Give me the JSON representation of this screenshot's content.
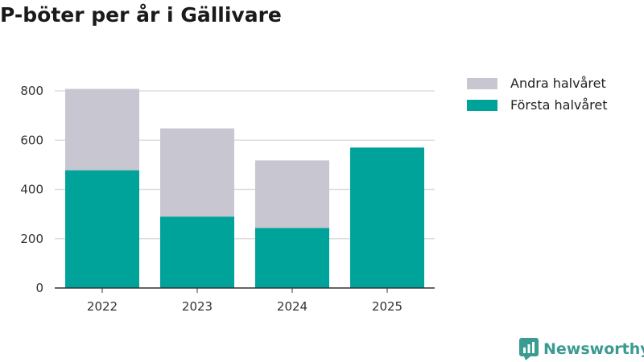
{
  "title": "P-böter per år i Gällivare",
  "colors": {
    "first_half": "#00a39a",
    "second_half": "#c8c7d1",
    "axis": "#333333",
    "grid": "#dddddd",
    "brand": "#3a9b90"
  },
  "legend": {
    "items": [
      {
        "label": "Andra halvåret",
        "color_key": "second_half"
      },
      {
        "label": "Första halvåret",
        "color_key": "first_half"
      }
    ]
  },
  "brand": {
    "name": "Newsworthy",
    "icon": "bar-chart-logo-icon"
  },
  "chart_data": {
    "type": "bar",
    "stacked": true,
    "title": "P-böter per år i Gällivare",
    "xlabel": "",
    "ylabel": "",
    "categories": [
      "2022",
      "2023",
      "2024",
      "2025"
    ],
    "series": [
      {
        "name": "Första halvåret",
        "values": [
          478,
          290,
          244,
          570
        ]
      },
      {
        "name": "Andra halvåret",
        "values": [
          330,
          358,
          274,
          0
        ]
      }
    ],
    "ylim": [
      0,
      800
    ],
    "yticks": [
      0,
      200,
      400,
      600,
      800
    ],
    "grid": true,
    "legend_position": "top-right"
  }
}
